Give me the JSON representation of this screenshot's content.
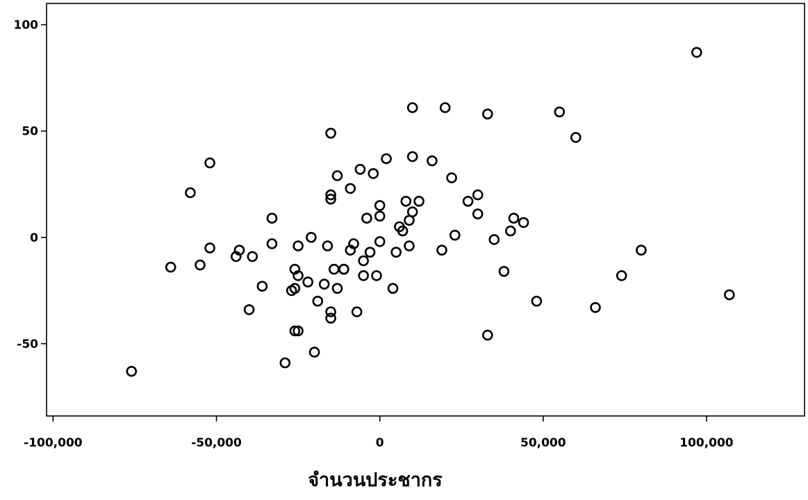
{
  "chart_data": {
    "type": "scatter",
    "title": "",
    "xlabel": "จำนวนประชากร",
    "ylabel": "",
    "xlim": [
      -102000,
      130000
    ],
    "ylim": [
      -84,
      110
    ],
    "xticks": [
      {
        "value": -100000,
        "label": "-100,000"
      },
      {
        "value": -50000,
        "label": "-50,000"
      },
      {
        "value": 0,
        "label": "0"
      },
      {
        "value": 50000,
        "label": "50,000"
      },
      {
        "value": 100000,
        "label": "100,000"
      }
    ],
    "yticks": [
      {
        "value": 100,
        "label": "100"
      },
      {
        "value": 50,
        "label": "50"
      },
      {
        "value": 0,
        "label": "0"
      },
      {
        "value": -50,
        "label": "-50"
      }
    ],
    "grid": false,
    "legend": "none",
    "marker": "open-circle",
    "colors": {
      "marker": "#000000",
      "axis": "#000000",
      "background": "#ffffff"
    },
    "points": [
      [
        -76000,
        -63
      ],
      [
        -64000,
        -14
      ],
      [
        -58000,
        21
      ],
      [
        -55000,
        -13
      ],
      [
        -52000,
        35
      ],
      [
        -52000,
        -5
      ],
      [
        -44000,
        -9
      ],
      [
        -43000,
        -6
      ],
      [
        -40000,
        -34
      ],
      [
        -39000,
        -9
      ],
      [
        -36000,
        -23
      ],
      [
        -33000,
        9
      ],
      [
        -33000,
        -3
      ],
      [
        -29000,
        -59
      ],
      [
        -27000,
        -25
      ],
      [
        -26000,
        -44
      ],
      [
        -26000,
        -15
      ],
      [
        -26000,
        -24
      ],
      [
        -25000,
        -44
      ],
      [
        -25000,
        -18
      ],
      [
        -25000,
        -4
      ],
      [
        -22000,
        -21
      ],
      [
        -21000,
        0
      ],
      [
        -20000,
        -54
      ],
      [
        -19000,
        -30
      ],
      [
        -17000,
        -22
      ],
      [
        -16000,
        -4
      ],
      [
        -15000,
        20
      ],
      [
        -15000,
        18
      ],
      [
        -15000,
        -35
      ],
      [
        -15000,
        -38
      ],
      [
        -15000,
        49
      ],
      [
        -14000,
        -15
      ],
      [
        -13000,
        -24
      ],
      [
        -13000,
        29
      ],
      [
        -11000,
        -15
      ],
      [
        -11000,
        -15
      ],
      [
        -9000,
        -6
      ],
      [
        -9000,
        23
      ],
      [
        -8000,
        -3
      ],
      [
        -7000,
        -35
      ],
      [
        -6000,
        32
      ],
      [
        -5000,
        -18
      ],
      [
        -5000,
        -11
      ],
      [
        -4000,
        9
      ],
      [
        -3000,
        -7
      ],
      [
        -2000,
        30
      ],
      [
        -1000,
        -18
      ],
      [
        0,
        -2
      ],
      [
        0,
        10
      ],
      [
        0,
        15
      ],
      [
        2000,
        37
      ],
      [
        4000,
        -24
      ],
      [
        5000,
        -7
      ],
      [
        6000,
        5
      ],
      [
        7000,
        3
      ],
      [
        8000,
        17
      ],
      [
        9000,
        -4
      ],
      [
        9000,
        8
      ],
      [
        10000,
        12
      ],
      [
        10000,
        61
      ],
      [
        10000,
        38
      ],
      [
        12000,
        17
      ],
      [
        16000,
        36
      ],
      [
        19000,
        -6
      ],
      [
        20000,
        61
      ],
      [
        22000,
        28
      ],
      [
        23000,
        1
      ],
      [
        27000,
        17
      ],
      [
        30000,
        20
      ],
      [
        30000,
        11
      ],
      [
        33000,
        -46
      ],
      [
        33000,
        58
      ],
      [
        35000,
        -1
      ],
      [
        38000,
        -16
      ],
      [
        40000,
        3
      ],
      [
        41000,
        9
      ],
      [
        44000,
        7
      ],
      [
        48000,
        -30
      ],
      [
        55000,
        59
      ],
      [
        60000,
        47
      ],
      [
        66000,
        -33
      ],
      [
        74000,
        -18
      ],
      [
        80000,
        -6
      ],
      [
        97000,
        87
      ],
      [
        107000,
        -27
      ]
    ]
  }
}
